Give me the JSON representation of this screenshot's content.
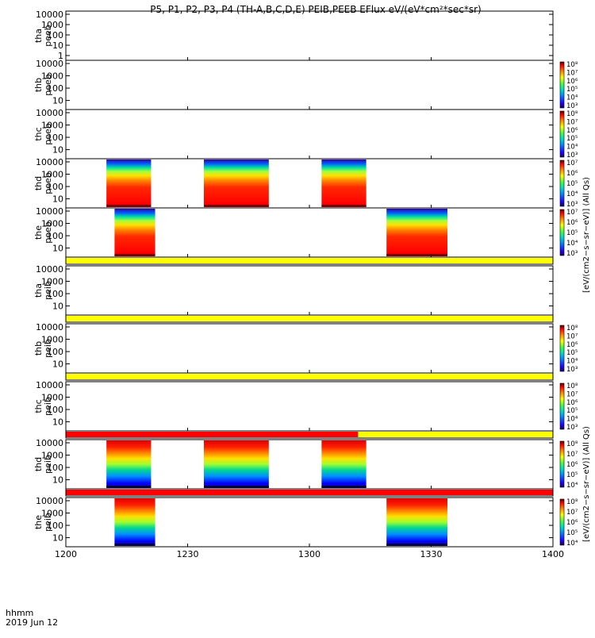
{
  "title": "P5, P1, P2, P3, P4 (TH-A,B,C,D,E) PEIB,PEEB EFlux eV/(eV*cm²*sec*sr)",
  "footer": {
    "time_label": "hhmm",
    "date_label": "2019 Jun 12"
  },
  "colorbar_units": {
    "electron": "[eV/(cm2−s−sr−eV)] (All Qs)",
    "ion": "[eV/(cm2−s−sr−eV)] (All Qs)"
  },
  "chart_data": {
    "type": "heatmap",
    "x_axis": {
      "range": [
        "12:00",
        "14:00"
      ],
      "ticks": [
        "1200",
        "1230",
        "1300",
        "1330",
        "1400"
      ],
      "label": "hhmm"
    },
    "panels": [
      {
        "probe": "tha",
        "product": "peeb",
        "ylabel_top": "tha",
        "ylabel_bottom": "peeb",
        "yticks": [
          "1",
          "10",
          "100",
          "1000",
          "10000"
        ],
        "has_data": false,
        "intervals": []
      },
      {
        "probe": "thb",
        "product": "peeb",
        "ylabel_top": "thb",
        "ylabel_bottom": "peeb",
        "yticks": [
          "10",
          "100",
          "1000",
          "10000"
        ],
        "has_data": false,
        "intervals": [],
        "colorbar": {
          "ticks": [
            "10³",
            "10⁴",
            "10⁵",
            "10⁶",
            "10⁷",
            "10⁸"
          ]
        }
      },
      {
        "probe": "thc",
        "product": "peeb",
        "ylabel_top": "thc",
        "ylabel_bottom": "peeb",
        "yticks": [
          "10",
          "100",
          "1000",
          "10000"
        ],
        "has_data": false,
        "intervals": [],
        "colorbar": {
          "ticks": [
            "10³",
            "10⁴",
            "10⁵",
            "10⁶",
            "10⁷",
            "10⁸"
          ]
        }
      },
      {
        "probe": "thd",
        "product": "peeb",
        "ylabel_top": "thd",
        "ylabel_bottom": "peeb",
        "yticks": [
          "10",
          "100",
          "1000",
          "10000"
        ],
        "has_data": true,
        "intervals": [
          [
            "12:10",
            "12:21"
          ],
          [
            "12:34",
            "12:50"
          ],
          [
            "13:03",
            "13:14"
          ]
        ],
        "colorbar": {
          "ticks": [
            "10³",
            "10⁴",
            "10⁵",
            "10⁶",
            "10⁷"
          ]
        }
      },
      {
        "probe": "the",
        "product": "peeb",
        "ylabel_top": "the",
        "ylabel_bottom": "peeb",
        "yticks": [
          "10",
          "100",
          "1000",
          "10000"
        ],
        "has_data": true,
        "intervals": [
          [
            "12:12",
            "12:22"
          ],
          [
            "13:19",
            "13:34"
          ]
        ],
        "colorbar": {
          "ticks": [
            "10³",
            "10⁴",
            "10⁵",
            "10⁶",
            "10⁷"
          ]
        }
      },
      {
        "probe": "tha",
        "product": "peib",
        "ylabel_top": "tha",
        "ylabel_bottom": "peib",
        "yticks": [
          "10",
          "100",
          "1000",
          "10000"
        ],
        "has_data": false,
        "intervals": [],
        "flag_bar": [
          {
            "color": "#ffff00",
            "range": [
              "12:00",
              "14:00"
            ]
          }
        ]
      },
      {
        "probe": "thb",
        "product": "peib",
        "ylabel_top": "thb",
        "ylabel_bottom": "peib",
        "yticks": [
          "10",
          "100",
          "1000",
          "10000"
        ],
        "has_data": false,
        "intervals": [],
        "flag_bar": [
          {
            "color": "#ffff00",
            "range": [
              "12:00",
              "14:00"
            ]
          }
        ],
        "colorbar": {
          "ticks": [
            "10³",
            "10⁴",
            "10⁵",
            "10⁶",
            "10⁷",
            "10⁸"
          ]
        }
      },
      {
        "probe": "thc",
        "product": "peib",
        "ylabel_top": "thc",
        "ylabel_bottom": "peib",
        "yticks": [
          "10",
          "100",
          "1000",
          "10000"
        ],
        "has_data": false,
        "intervals": [],
        "flag_bar": [
          {
            "color": "#ffff00",
            "range": [
              "12:00",
              "14:00"
            ]
          }
        ],
        "colorbar": {
          "ticks": [
            "10³",
            "10⁴",
            "10⁵",
            "10⁶",
            "10⁷",
            "10⁸"
          ]
        }
      },
      {
        "probe": "thd",
        "product": "peib",
        "ylabel_top": "thd",
        "ylabel_bottom": "peib",
        "yticks": [
          "10",
          "100",
          "1000",
          "10000"
        ],
        "has_data": true,
        "intervals": [
          [
            "12:10",
            "12:21"
          ],
          [
            "12:34",
            "12:50"
          ],
          [
            "13:03",
            "13:14"
          ]
        ],
        "flag_bar": [
          {
            "color": "#ff0000",
            "range": [
              "12:00",
              "13:12"
            ]
          },
          {
            "color": "#ffff00",
            "range": [
              "13:12",
              "14:00"
            ]
          }
        ],
        "colorbar": {
          "ticks": [
            "10⁴",
            "10⁵",
            "10⁶",
            "10⁷",
            "10⁸"
          ]
        }
      },
      {
        "probe": "the",
        "product": "peib",
        "ylabel_top": "the",
        "ylabel_bottom": "peib",
        "yticks": [
          "10",
          "100",
          "1000",
          "10000"
        ],
        "has_data": true,
        "intervals": [
          [
            "12:12",
            "12:22"
          ],
          [
            "13:19",
            "13:34"
          ]
        ],
        "flag_bar": [
          {
            "color": "#ff0000",
            "range": [
              "12:00",
              "14:00"
            ]
          }
        ],
        "colorbar": {
          "ticks": [
            "10⁴",
            "10⁵",
            "10⁶",
            "10⁷",
            "10⁸"
          ]
        }
      }
    ]
  }
}
